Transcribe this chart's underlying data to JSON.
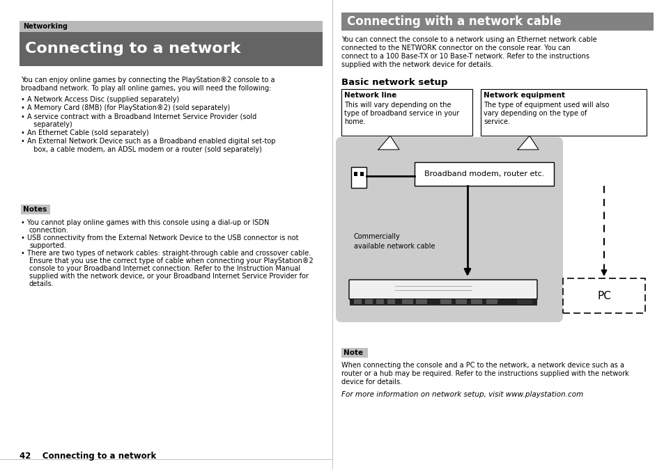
{
  "page_bg": "#ffffff",
  "left": {
    "net_label": "Networking",
    "net_label_bg": "#b8b8b8",
    "net_label_color": "#000000",
    "title": "Connecting to a network",
    "title_bg": "#646464",
    "title_color": "#ffffff",
    "body1": "You can enjoy online games by connecting the PlayStation®2 console to a",
    "body2": "broadband network. To play all online games, you will need the following:",
    "bullets": [
      "A Network Access Disc (supplied separately)",
      "A Memory Card (8MB) (for PlayStation®2) (sold separately)",
      "A service contract with a Broadband Internet Service Provider (sold",
      "  separately)",
      "An Ethernet Cable (sold separately)",
      "An External Network Device such as a Broadband enabled digital set-top",
      "  box, a cable modem, an ADSL modem or a router (sold separately)"
    ],
    "notes_label": "Notes",
    "notes_label_bg": "#c0c0c0",
    "notes": [
      "You cannot play online games with this console using a dial-up or ISDN",
      "  connection.",
      "USB connectivity from the External Network Device to the USB connector is not",
      "  supported.",
      "There are two types of network cables: straight-through cable and crossover cable.",
      "  Ensure that you use the correct type of cable when connecting your PlayStation®2",
      "  console to your Broadband Internet connection. Refer to the Instruction Manual",
      "  supplied with the network device, or your Broadband Internet Service Provider for",
      "  details."
    ],
    "footer": "42    Connecting to a network"
  },
  "right": {
    "title": "Connecting with a network cable",
    "title_bg": "#828282",
    "title_color": "#ffffff",
    "body": [
      "You can connect the console to a network using an Ethernet network cable",
      "connected to the NETWORK connector on the console rear. You can",
      "connect to a 100 Base-TX or 10 Base-T network. Refer to the instructions",
      "supplied with the network device for details."
    ],
    "basic_title": "Basic network setup",
    "box1_title": "Network line",
    "box1_lines": [
      "This will vary depending on the",
      "type of broadband service in your",
      "home."
    ],
    "box2_title": "Network equipment",
    "box2_lines": [
      "The type of equipment used will also",
      "vary depending on the type of",
      "service."
    ],
    "diagram_bg": "#cccccc",
    "modem_text": "Broadband modem, router etc.",
    "cable_line1": "Commercially",
    "cable_line2": "available network cable",
    "pc_text": "PC",
    "note_label": "Note",
    "note_label_bg": "#c0c0c0",
    "note_lines": [
      "When connecting the console and a PC to the network, a network device such as a",
      "router or a hub may be required. Refer to the instructions supplied with the network",
      "device for details."
    ],
    "footer_italic": "For more information on network setup, visit www.playstation.com"
  }
}
